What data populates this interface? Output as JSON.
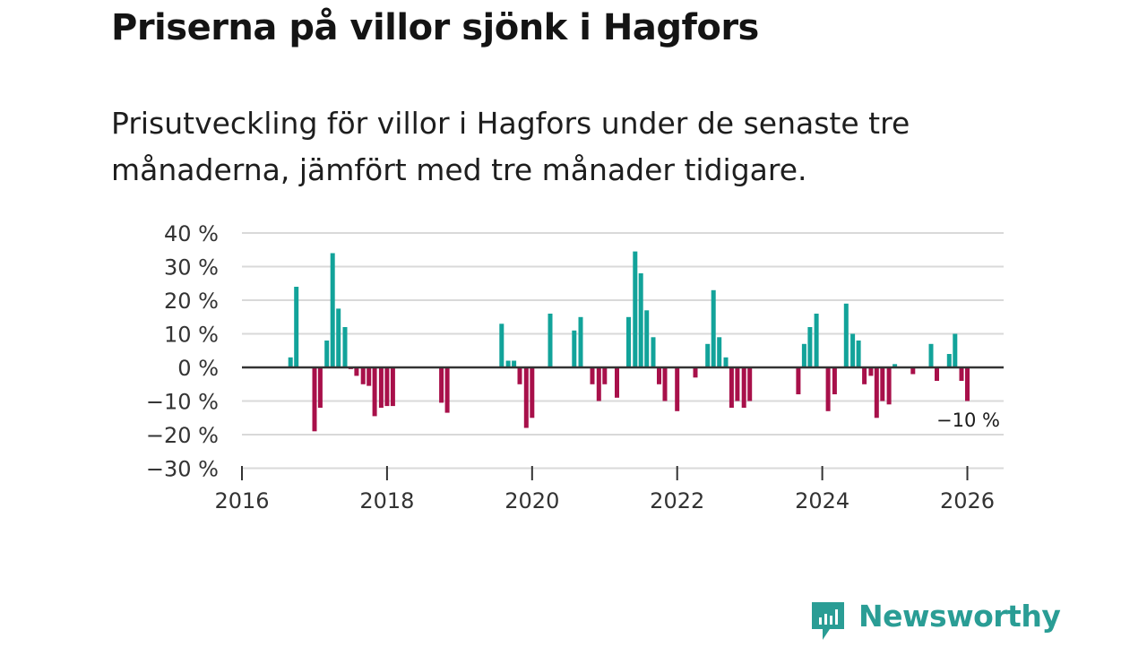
{
  "title": "Priserna på villor sjönk i Hagfors",
  "subtitle": "Prisutveckling för villor i Hagfors under de senaste tre månaderna, jämfört med tre månader tidigare.",
  "brand": {
    "name": "Newsworthy",
    "color": "#2a9d95"
  },
  "colors": {
    "positive": "#12a39a",
    "negative": "#a8104a",
    "grid": "#d9d9d9",
    "zero": "#333333"
  },
  "chart_data": {
    "type": "bar",
    "title": "Priserna på villor sjönk i Hagfors",
    "xlabel": "",
    "ylabel": "",
    "xlim": [
      2016,
      2026.5
    ],
    "ylim": [
      -30,
      40
    ],
    "y_ticks": [
      40,
      30,
      20,
      10,
      0,
      -10,
      -20,
      -30
    ],
    "y_tick_labels": [
      "40 %",
      "30 %",
      "20 %",
      "10 %",
      "0 %",
      "−10 %",
      "−20 %",
      "−30 %"
    ],
    "x_ticks": [
      2016,
      2018,
      2020,
      2022,
      2024,
      2026
    ],
    "x_tick_labels": [
      "2016",
      "2018",
      "2020",
      "2022",
      "2024",
      "2026"
    ],
    "annotation": {
      "text": "−10 %",
      "x": 2025.83
    },
    "x": [
      2016.67,
      2016.75,
      2017.0,
      2017.08,
      2017.17,
      2017.25,
      2017.33,
      2017.42,
      2017.5,
      2017.58,
      2017.67,
      2017.75,
      2017.83,
      2017.92,
      2018.0,
      2018.08,
      2018.75,
      2018.83,
      2019.58,
      2019.67,
      2019.75,
      2019.83,
      2019.92,
      2020.0,
      2020.25,
      2020.58,
      2020.67,
      2020.83,
      2020.92,
      2021.0,
      2021.17,
      2021.33,
      2021.42,
      2021.5,
      2021.58,
      2021.67,
      2021.75,
      2021.83,
      2022.0,
      2022.25,
      2022.42,
      2022.5,
      2022.58,
      2022.67,
      2022.75,
      2022.83,
      2022.92,
      2023.0,
      2023.67,
      2023.75,
      2023.83,
      2023.92,
      2024.08,
      2024.17,
      2024.33,
      2024.42,
      2024.5,
      2024.58,
      2024.67,
      2024.75,
      2024.83,
      2024.92,
      2025.0,
      2025.25,
      2025.5,
      2025.58,
      2025.75,
      2025.83,
      2025.92,
      2026.0
    ],
    "values": [
      3,
      24,
      -19,
      -12,
      8,
      34,
      17.5,
      12,
      -0.5,
      -2.5,
      -5,
      -5.5,
      -14.5,
      -12,
      -11.5,
      -11.5,
      -10.5,
      -13.5,
      13,
      2,
      2,
      -5,
      -18,
      -15,
      16,
      11,
      15,
      -5,
      -10,
      -5,
      -9,
      15,
      34.5,
      28,
      17,
      9,
      -5,
      -10,
      -13,
      -3,
      7,
      23,
      9,
      3,
      -12,
      -10,
      -12,
      -10,
      -8,
      7,
      12,
      16,
      -13,
      -8,
      19,
      10,
      8,
      -5,
      -2.5,
      -15,
      -10,
      -11,
      1,
      -2,
      7,
      -4,
      4,
      10,
      -4,
      -10
    ]
  }
}
